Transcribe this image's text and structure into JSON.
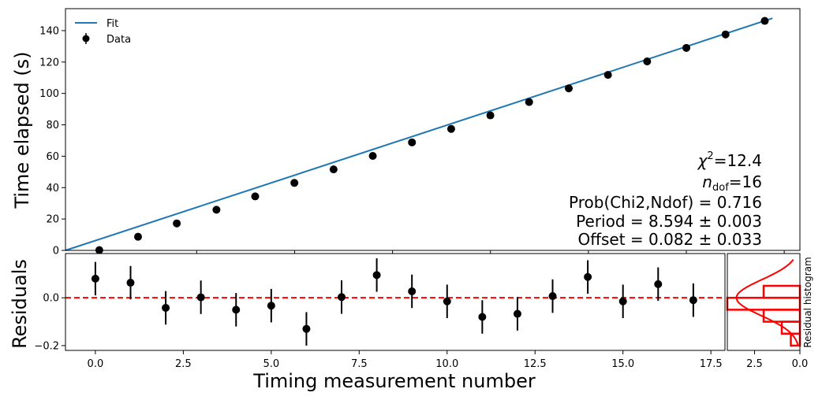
{
  "chart_data": [
    {
      "panel": "main",
      "type": "line",
      "ylabel": "Time elapsed (s)",
      "xlim": [
        -0.85,
        17.9
      ],
      "ylim": [
        0,
        154
      ],
      "yticks": [
        0,
        20,
        40,
        60,
        80,
        100,
        120,
        140
      ],
      "legend": {
        "placement": "top-left",
        "entries": [
          "Fit",
          "Data"
        ]
      },
      "series": [
        {
          "name": "Fit",
          "kind": "line",
          "color": "#1f77b4",
          "slope": 8.594,
          "intercept": 0.082
        },
        {
          "name": "Data",
          "kind": "errorbar-scatter",
          "color": "#000000",
          "x": [
            0,
            1,
            2,
            3,
            4,
            5,
            6,
            7,
            8,
            9,
            10,
            11,
            12,
            13,
            14,
            15,
            16,
            17
          ],
          "y": [
            0.2,
            8.7,
            17.2,
            25.9,
            34.4,
            43.0,
            51.6,
            60.2,
            68.8,
            77.4,
            86.0,
            94.5,
            103.2,
            111.8,
            120.4,
            129.0,
            137.6,
            146.2
          ]
        }
      ],
      "annotations": {
        "chi2_label": "χ",
        "chi2_sup": "2",
        "chi2_value": "=12.4",
        "ndof_label": "n",
        "ndof_sub": "dof",
        "ndof_value": "=16",
        "prob": "Prob(Chi2,Ndof) = 0.716",
        "period": "Period = 8.594 ± 0.003",
        "offset": "Offset = 0.082 ± 0.033"
      }
    },
    {
      "panel": "residuals",
      "type": "scatter",
      "xlabel": "Timing measurement number",
      "ylabel": "Residuals",
      "xlim": [
        -0.85,
        17.9
      ],
      "ylim": [
        -0.22,
        0.185
      ],
      "xticks": [
        0.0,
        2.5,
        5.0,
        7.5,
        10.0,
        12.5,
        15.0,
        17.5
      ],
      "xtick_labels": [
        "0.0",
        "2.5",
        "5.0",
        "7.5",
        "10.0",
        "12.5",
        "15.0",
        "17.5"
      ],
      "yticks": [
        -0.2,
        0.0
      ],
      "ytick_labels": [
        "−0.2",
        "0.0"
      ],
      "zero_line": {
        "y": 0,
        "color": "#ff0000",
        "style": "dashed"
      },
      "series": [
        {
          "name": "Residuals",
          "color": "#000000",
          "x": [
            0,
            1,
            2,
            3,
            4,
            5,
            6,
            7,
            8,
            9,
            10,
            11,
            12,
            13,
            14,
            15,
            16,
            17
          ],
          "y": [
            0.08,
            0.063,
            -0.042,
            0.002,
            -0.05,
            -0.033,
            -0.13,
            0.003,
            0.095,
            0.027,
            -0.015,
            -0.08,
            -0.067,
            0.007,
            0.087,
            -0.015,
            0.057,
            -0.01
          ],
          "yerr": 0.07
        }
      ]
    },
    {
      "panel": "histogram",
      "type": "bar",
      "orientation": "horizontal",
      "label": "Residual histogram",
      "color": "#ff0000",
      "xlim": [
        4.0,
        0.0
      ],
      "xticks": [
        2.5,
        0.0
      ],
      "xtick_labels": [
        "2.5",
        "0.0"
      ],
      "bins": [
        -0.2,
        -0.15,
        -0.1,
        -0.05,
        0.0,
        0.05,
        0.1
      ],
      "counts": [
        0.5,
        1,
        2,
        4,
        2,
        0,
        2
      ]
    }
  ]
}
